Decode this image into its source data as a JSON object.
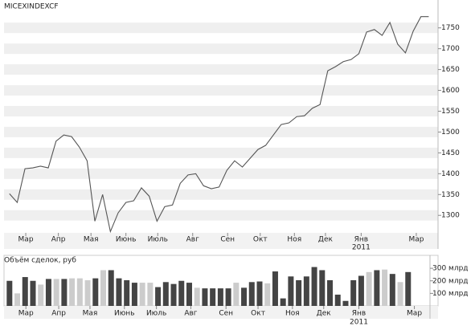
{
  "chart_data": [
    {
      "type": "line",
      "title": "MICEXINDEXCF",
      "color": "#555555",
      "x": [
        0,
        1,
        2,
        3,
        4,
        5,
        6,
        7,
        8,
        9,
        10,
        11,
        12,
        13,
        14,
        15,
        16,
        17,
        18,
        19,
        20,
        21,
        22,
        23,
        24,
        25,
        26,
        27,
        28,
        29,
        30,
        31,
        32,
        33,
        34,
        35,
        36,
        37,
        38,
        39,
        40,
        41,
        42,
        43,
        44,
        45,
        46,
        47,
        48,
        49,
        50,
        51,
        52,
        53,
        54
      ],
      "values": [
        1352,
        1331,
        1412,
        1414,
        1418,
        1414,
        1478,
        1493,
        1489,
        1464,
        1431,
        1286,
        1350,
        1261,
        1306,
        1331,
        1335,
        1366,
        1346,
        1286,
        1321,
        1325,
        1377,
        1397,
        1400,
        1371,
        1364,
        1368,
        1408,
        1431,
        1416,
        1437,
        1458,
        1468,
        1493,
        1518,
        1522,
        1537,
        1539,
        1557,
        1566,
        1647,
        1657,
        1669,
        1674,
        1688,
        1740,
        1746,
        1732,
        1763,
        1711,
        1690,
        1742,
        1777,
        1777
      ],
      "xlim": [
        -0.7,
        55.2
      ],
      "xticks": [
        {
          "value": 2.1,
          "label": "Мар"
        },
        {
          "value": 6.3,
          "label": "Апр"
        },
        {
          "value": 10.5,
          "label": "Мая"
        },
        {
          "value": 15,
          "label": "Июнь"
        },
        {
          "value": 19.1,
          "label": "Июль"
        },
        {
          "value": 23.6,
          "label": "Авг"
        },
        {
          "value": 28.1,
          "label": "Сен"
        },
        {
          "value": 32.3,
          "label": "Окт"
        },
        {
          "value": 36.7,
          "label": "Ноя"
        },
        {
          "value": 40.7,
          "label": "Дек"
        },
        {
          "value": 45.3,
          "label": "Янв"
        },
        {
          "value": 52.4,
          "label": "Мар"
        }
      ],
      "year_label": "2011",
      "ylim": [
        1258,
        1788
      ],
      "yticks": [
        1300,
        1350,
        1400,
        1450,
        1500,
        1550,
        1600,
        1650,
        1700,
        1750
      ]
    },
    {
      "type": "bar",
      "title": "Объём сделок, руб",
      "x": [
        0,
        1,
        2,
        3,
        4,
        5,
        6,
        7,
        8,
        9,
        10,
        11,
        12,
        13,
        14,
        15,
        16,
        17,
        18,
        19,
        20,
        21,
        22,
        23,
        24,
        25,
        26,
        27,
        28,
        29,
        30,
        31,
        32,
        33,
        34,
        35,
        36,
        37,
        38,
        39,
        40,
        41,
        42,
        43,
        44,
        45,
        46,
        47,
        48,
        49,
        50,
        51
      ],
      "values": [
        200,
        100,
        230,
        200,
        170,
        215,
        215,
        215,
        220,
        220,
        205,
        220,
        285,
        285,
        220,
        205,
        185,
        185,
        185,
        150,
        190,
        175,
        200,
        185,
        145,
        140,
        140,
        140,
        140,
        185,
        145,
        190,
        195,
        180,
        275,
        60,
        235,
        205,
        235,
        310,
        285,
        205,
        90,
        40,
        205,
        240,
        270,
        285,
        290,
        255,
        190,
        270
      ],
      "colors": [
        "#444444",
        "#cccccc",
        "#444444",
        "#444444",
        "#cccccc",
        "#444444",
        "#cccccc",
        "#444444",
        "#cccccc",
        "#cccccc",
        "#cccccc",
        "#444444",
        "#cccccc",
        "#444444",
        "#444444",
        "#444444",
        "#444444",
        "#cccccc",
        "#cccccc",
        "#444444",
        "#444444",
        "#444444",
        "#444444",
        "#444444",
        "#cccccc",
        "#444444",
        "#444444",
        "#444444",
        "#444444",
        "#cccccc",
        "#444444",
        "#444444",
        "#444444",
        "#cccccc",
        "#444444",
        "#444444",
        "#444444",
        "#444444",
        "#444444",
        "#444444",
        "#444444",
        "#444444",
        "#444444",
        "#444444",
        "#444444",
        "#444444",
        "#cccccc",
        "#444444",
        "#cccccc",
        "#444444",
        "#cccccc",
        "#444444"
      ],
      "xlim": [
        -0.7,
        53.8
      ],
      "xticks": [
        {
          "value": 2.1,
          "label": "Мар"
        },
        {
          "value": 6.3,
          "label": "Апр"
        },
        {
          "value": 10.3,
          "label": "Мая"
        },
        {
          "value": 14.7,
          "label": "Июнь"
        },
        {
          "value": 18.8,
          "label": "Июль"
        },
        {
          "value": 23.2,
          "label": "Авг"
        },
        {
          "value": 27.7,
          "label": "Сен"
        },
        {
          "value": 31.8,
          "label": "Окт"
        },
        {
          "value": 36.2,
          "label": "Ноя"
        },
        {
          "value": 40.2,
          "label": "Дек"
        },
        {
          "value": 44.7,
          "label": "Янв"
        },
        {
          "value": 51.8,
          "label": "Мар"
        }
      ],
      "year_label": "2011",
      "ylim": [
        0,
        320
      ],
      "yticks": [
        {
          "value": 100,
          "label": "100 млрд"
        },
        {
          "value": 200,
          "label": "200 млрд"
        },
        {
          "value": 300,
          "label": "300 млрд"
        }
      ]
    }
  ]
}
